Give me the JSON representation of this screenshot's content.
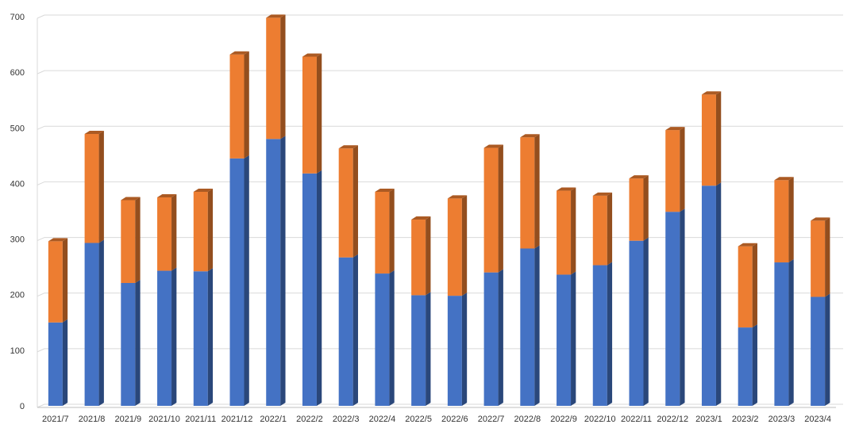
{
  "chart_data": {
    "type": "bar",
    "stacked": true,
    "style": "3d-column",
    "categories": [
      "2021/7",
      "2021/8",
      "2021/9",
      "2021/10",
      "2021/11",
      "2021/12",
      "2022/1",
      "2022/2",
      "2022/3",
      "2022/4",
      "2022/5",
      "2022/6",
      "2022/7",
      "2022/8",
      "2022/9",
      "2022/10",
      "2022/11",
      "2022/12",
      "2023/1",
      "2023/2",
      "2023/3",
      "2023/4"
    ],
    "series": [
      {
        "color": "#4472C4",
        "values": [
          150,
          293,
          221,
          243,
          242,
          445,
          480,
          418,
          267,
          238,
          199,
          198,
          240,
          283,
          236,
          253,
          297,
          349,
          396,
          141,
          258,
          196
        ]
      },
      {
        "color": "#ED7D31",
        "values": [
          146,
          196,
          149,
          132,
          143,
          187,
          218,
          210,
          196,
          147,
          136,
          175,
          224,
          200,
          151,
          125,
          112,
          147,
          164,
          146,
          148,
          137
        ]
      }
    ],
    "title": "",
    "xlabel": "",
    "ylabel": "",
    "ylim": [
      0,
      700
    ],
    "yticks": [
      0,
      100,
      200,
      300,
      400,
      500,
      600,
      700
    ],
    "grid": true,
    "legend": "none"
  }
}
